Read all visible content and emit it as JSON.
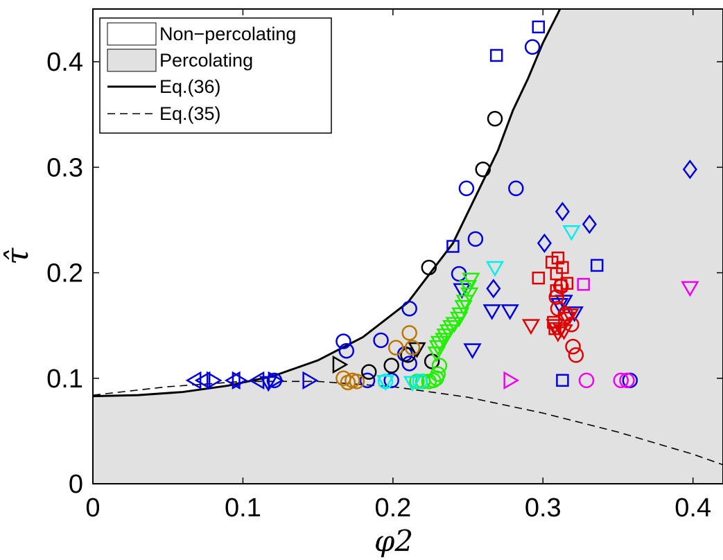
{
  "chart_data": {
    "type": "scatter",
    "title": "",
    "xlabel": "φ2",
    "ylabel": "τ̂",
    "xlim": [
      0,
      0.42
    ],
    "ylim": [
      0,
      0.45
    ],
    "xticks": [
      "0",
      "0.1",
      "0.2",
      "0.3",
      "0.4"
    ],
    "yticks": [
      "0",
      "0.1",
      "0.2",
      "0.3",
      "0.4"
    ],
    "grid": false,
    "legend_position": "top-left",
    "legend": [
      {
        "label": "Non−percolating",
        "kind": "region-empty"
      },
      {
        "label": "Percolating",
        "kind": "region-filled"
      },
      {
        "label": "Eq.(36)",
        "kind": "solid-line"
      },
      {
        "label": "Eq.(35)",
        "kind": "dashed-line"
      }
    ],
    "colors": {
      "blue": "#0000dd",
      "black": "#000000",
      "green": "#22ee00",
      "red": "#dd0000",
      "cyan": "#00eeee",
      "magenta": "#ee00ee",
      "brown": "#bb7700",
      "percolating_fill": "#e1e1e1"
    },
    "curves": [
      {
        "name": "Eq.(36)",
        "style": "solid",
        "x": [
          0,
          0.03,
          0.06,
          0.09,
          0.12,
          0.15,
          0.18,
          0.21,
          0.24,
          0.27,
          0.28,
          0.29,
          0.3,
          0.31,
          0.312
        ],
        "y": [
          0.083,
          0.084,
          0.087,
          0.093,
          0.102,
          0.117,
          0.139,
          0.172,
          0.228,
          0.316,
          0.354,
          0.384,
          0.418,
          0.446,
          0.452
        ]
      },
      {
        "name": "Eq.(35)",
        "style": "dashed",
        "x": [
          0,
          0.05,
          0.1,
          0.15,
          0.2,
          0.25,
          0.3,
          0.35,
          0.4,
          0.42
        ],
        "y": [
          0.084,
          0.092,
          0.097,
          0.097,
          0.092,
          0.082,
          0.067,
          0.049,
          0.028,
          0.018
        ]
      }
    ],
    "series": [
      {
        "color": "blue",
        "marker": "circle",
        "points": [
          [
            0.293,
            0.414
          ],
          [
            0.282,
            0.28
          ],
          [
            0.249,
            0.28
          ],
          [
            0.255,
            0.232
          ],
          [
            0.244,
            0.199
          ],
          [
            0.211,
            0.166
          ],
          [
            0.167,
            0.135
          ],
          [
            0.169,
            0.126
          ],
          [
            0.192,
            0.136
          ],
          [
            0.208,
            0.123
          ],
          [
            0.211,
            0.114
          ],
          [
            0.199,
            0.098
          ],
          [
            0.183,
            0.098
          ],
          [
            0.121,
            0.098
          ],
          [
            0.358,
            0.098
          ]
        ]
      },
      {
        "color": "blue",
        "marker": "square",
        "points": [
          [
            0.297,
            0.433
          ],
          [
            0.269,
            0.406
          ],
          [
            0.24,
            0.225
          ],
          [
            0.336,
            0.207
          ],
          [
            0.313,
            0.098
          ]
        ]
      },
      {
        "color": "blue",
        "marker": "diamond",
        "points": [
          [
            0.398,
            0.298
          ],
          [
            0.313,
            0.258
          ],
          [
            0.331,
            0.246
          ],
          [
            0.301,
            0.228
          ],
          [
            0.267,
            0.185
          ]
        ]
      },
      {
        "color": "blue",
        "marker": "triangle-down",
        "points": [
          [
            0.246,
            0.184
          ],
          [
            0.266,
            0.164
          ],
          [
            0.278,
            0.164
          ],
          [
            0.321,
            0.162
          ],
          [
            0.253,
            0.127
          ],
          [
            0.311,
            0.17
          ],
          [
            0.314,
            0.173
          ]
        ]
      },
      {
        "color": "blue",
        "marker": "triangle-left",
        "points": [
          [
            0.068,
            0.098
          ],
          [
            0.074,
            0.098
          ],
          [
            0.094,
            0.098
          ],
          [
            0.11,
            0.098
          ]
        ]
      },
      {
        "color": "blue",
        "marker": "triangle-right",
        "points": [
          [
            0.08,
            0.098
          ],
          [
            0.097,
            0.098
          ],
          [
            0.121,
            0.098
          ],
          [
            0.144,
            0.098
          ]
        ]
      },
      {
        "color": "blue",
        "marker": "triangle-down",
        "points": [
          [
            0.117,
            0.096
          ]
        ]
      },
      {
        "color": "black",
        "marker": "circle",
        "points": [
          [
            0.268,
            0.346
          ],
          [
            0.26,
            0.298
          ],
          [
            0.224,
            0.205
          ],
          [
            0.226,
            0.116
          ],
          [
            0.21,
            0.122
          ],
          [
            0.199,
            0.112
          ],
          [
            0.184,
            0.106
          ]
        ]
      },
      {
        "color": "black",
        "marker": "triangle-right",
        "points": [
          [
            0.164,
            0.113
          ]
        ]
      },
      {
        "color": "black",
        "marker": "triangle-down",
        "points": [
          [
            0.216,
            0.128
          ]
        ]
      },
      {
        "color": "green",
        "marker": "triangle-down",
        "points": [
          [
            0.252,
            0.194
          ],
          [
            0.25,
            0.187
          ],
          [
            0.251,
            0.18
          ],
          [
            0.248,
            0.173
          ],
          [
            0.247,
            0.168
          ],
          [
            0.245,
            0.161
          ],
          [
            0.244,
            0.157
          ],
          [
            0.241,
            0.152
          ],
          [
            0.239,
            0.149
          ],
          [
            0.237,
            0.145
          ],
          [
            0.235,
            0.141
          ],
          [
            0.234,
            0.137
          ],
          [
            0.231,
            0.134
          ],
          [
            0.23,
            0.13
          ],
          [
            0.229,
            0.124
          ]
        ]
      },
      {
        "color": "green",
        "marker": "circle",
        "points": [
          [
            0.231,
            0.112
          ],
          [
            0.23,
            0.104
          ],
          [
            0.229,
            0.1
          ],
          [
            0.227,
            0.098
          ],
          [
            0.224,
            0.097
          ],
          [
            0.22,
            0.097
          ],
          [
            0.216,
            0.097
          ]
        ]
      },
      {
        "color": "red",
        "marker": "square",
        "points": [
          [
            0.31,
            0.214
          ],
          [
            0.306,
            0.21
          ],
          [
            0.313,
            0.205
          ],
          [
            0.309,
            0.199
          ],
          [
            0.297,
            0.195
          ],
          [
            0.316,
            0.19
          ],
          [
            0.312,
            0.188
          ],
          [
            0.309,
            0.183
          ],
          [
            0.307,
            0.153
          ],
          [
            0.308,
            0.147
          ]
        ]
      },
      {
        "color": "red",
        "marker": "circle",
        "points": [
          [
            0.312,
            0.187
          ],
          [
            0.309,
            0.177
          ],
          [
            0.31,
            0.166
          ],
          [
            0.315,
            0.161
          ],
          [
            0.319,
            0.151
          ],
          [
            0.32,
            0.13
          ],
          [
            0.322,
            0.122
          ]
        ]
      },
      {
        "color": "red",
        "marker": "triangle-down",
        "points": [
          [
            0.292,
            0.15
          ],
          [
            0.308,
            0.15
          ],
          [
            0.312,
            0.147
          ],
          [
            0.314,
            0.145
          ],
          [
            0.31,
            0.143
          ],
          [
            0.316,
            0.157
          ],
          [
            0.318,
            0.16
          ]
        ]
      },
      {
        "color": "cyan",
        "marker": "triangle-down",
        "points": [
          [
            0.268,
            0.205
          ],
          [
            0.319,
            0.239
          ],
          [
            0.195,
            0.097
          ],
          [
            0.213,
            0.096
          ]
        ]
      },
      {
        "color": "cyan",
        "marker": "circle",
        "points": [
          [
            0.195,
            0.097
          ],
          [
            0.218,
            0.097
          ]
        ]
      },
      {
        "color": "magenta",
        "marker": "square",
        "points": [
          [
            0.327,
            0.189
          ]
        ]
      },
      {
        "color": "magenta",
        "marker": "triangle-down",
        "points": [
          [
            0.398,
            0.186
          ]
        ]
      },
      {
        "color": "magenta",
        "marker": "circle",
        "points": [
          [
            0.329,
            0.098
          ],
          [
            0.352,
            0.098
          ],
          [
            0.356,
            0.098
          ]
        ]
      },
      {
        "color": "magenta",
        "marker": "triangle-right",
        "points": [
          [
            0.278,
            0.098
          ]
        ]
      },
      {
        "color": "brown",
        "marker": "circle",
        "points": [
          [
            0.211,
            0.143
          ],
          [
            0.202,
            0.129
          ],
          [
            0.213,
            0.129
          ],
          [
            0.167,
            0.1
          ],
          [
            0.173,
            0.098
          ],
          [
            0.176,
            0.097
          ],
          [
            0.17,
            0.096
          ]
        ]
      }
    ]
  }
}
